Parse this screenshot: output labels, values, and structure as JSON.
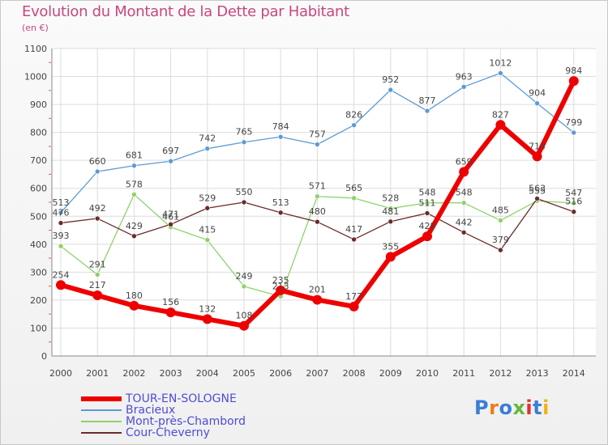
{
  "title": "Evolution du Montant de la Dette par Habitant",
  "unit": "(en €)",
  "logo": {
    "text": "Proxiti",
    "colors": [
      "#3b7dd8",
      "#f07a1a",
      "#3b7dd8",
      "#63b83b",
      "#e2312d",
      "#3b7dd8",
      "#f0b21a"
    ]
  },
  "chart_data": {
    "type": "line",
    "title": "Evolution du Montant de la Dette par Habitant",
    "ylabel": "(en €)",
    "ylim": [
      0,
      1100
    ],
    "yticks": [
      0,
      100,
      200,
      300,
      400,
      500,
      600,
      700,
      800,
      900,
      1000,
      1100
    ],
    "grid": true,
    "legend_position": "bottom",
    "x": [
      "2000",
      "2001",
      "2002",
      "2003",
      "2004",
      "2005",
      "2006",
      "2007",
      "2008",
      "2009",
      "2010",
      "2011",
      "2012",
      "2013",
      "2014"
    ],
    "series": [
      {
        "name": "TOUR-EN-SOLOGNE",
        "color": "#ee0000",
        "values": [
          254,
          217,
          180,
          156,
          132,
          108,
          235,
          201,
          177,
          355,
          428,
          659,
          827,
          714,
          984
        ]
      },
      {
        "name": "Bracieux",
        "color": "#5b9bd5",
        "values": [
          513,
          660,
          681,
          697,
          742,
          765,
          784,
          757,
          826,
          952,
          877,
          963,
          1012,
          904,
          799
        ]
      },
      {
        "name": "Mont-près-Chambord",
        "color": "#8fd16a",
        "values": [
          393,
          291,
          578,
          461,
          415,
          249,
          213,
          571,
          565,
          528,
          548,
          548,
          485,
          555,
          547
        ]
      },
      {
        "name": "Cour-Cheverny",
        "color": "#6b2a2a",
        "values": [
          476,
          492,
          429,
          471,
          529,
          550,
          513,
          480,
          417,
          481,
          511,
          442,
          379,
          563,
          516
        ]
      }
    ]
  }
}
